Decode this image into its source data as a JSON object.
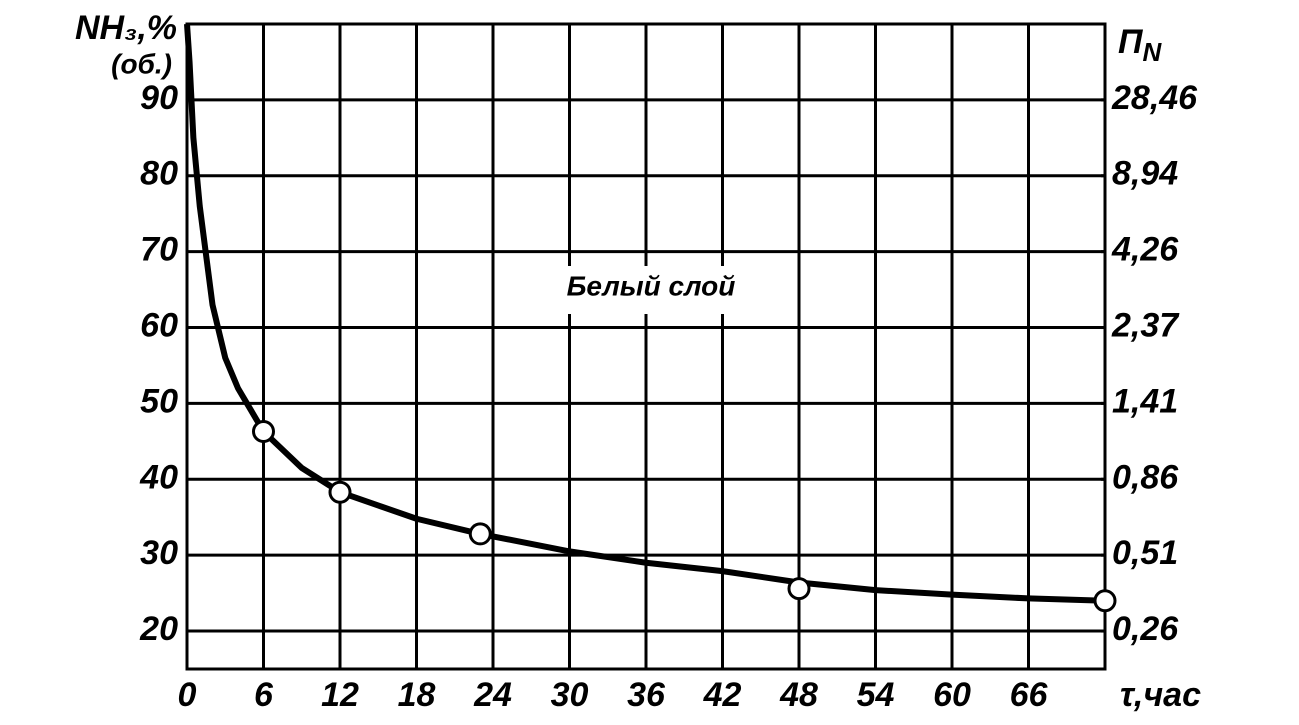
{
  "chart_data": {
    "type": "line",
    "ylabel": "NH₃,%",
    "ylabel2": "(об.)",
    "y2label": "П",
    "y2label_sub": "N",
    "xlabel": "τ,час",
    "annotation": "Белый слой",
    "xlim": [
      0,
      72
    ],
    "xticks": [
      0,
      6,
      12,
      18,
      24,
      30,
      36,
      42,
      48,
      54,
      60,
      66
    ],
    "ylim": [
      15,
      100
    ],
    "yticks": [
      20,
      30,
      40,
      50,
      60,
      70,
      80,
      90
    ],
    "y2ticks": [
      {
        "value": 0.26,
        "label": "0,26"
      },
      {
        "value": 0.51,
        "label": "0,51"
      },
      {
        "value": 0.86,
        "label": "0,86"
      },
      {
        "value": 1.41,
        "label": "1,41"
      },
      {
        "value": 2.37,
        "label": "2,37"
      },
      {
        "value": 4.26,
        "label": "4,26"
      },
      {
        "value": 8.94,
        "label": "8,94"
      },
      {
        "value": 28.46,
        "label": "28,46"
      }
    ],
    "grid": true,
    "series": [
      {
        "style": "line",
        "color": "#000000",
        "x": [
          0,
          0.2,
          0.5,
          1,
          2,
          3,
          4,
          6,
          9,
          12,
          18,
          23,
          30,
          36,
          42,
          48,
          54,
          60,
          66,
          72
        ],
        "values": [
          100,
          95,
          85,
          76,
          63,
          56,
          52,
          46.3,
          41.5,
          38.3,
          34.8,
          32.8,
          30.5,
          29,
          27.9,
          26.4,
          25.4,
          24.8,
          24.3,
          24
        ]
      },
      {
        "style": "markers",
        "color": "#000000",
        "x": [
          6,
          12,
          23,
          48,
          72
        ],
        "values": [
          46.3,
          38.3,
          32.8,
          25.6,
          24
        ]
      }
    ]
  }
}
